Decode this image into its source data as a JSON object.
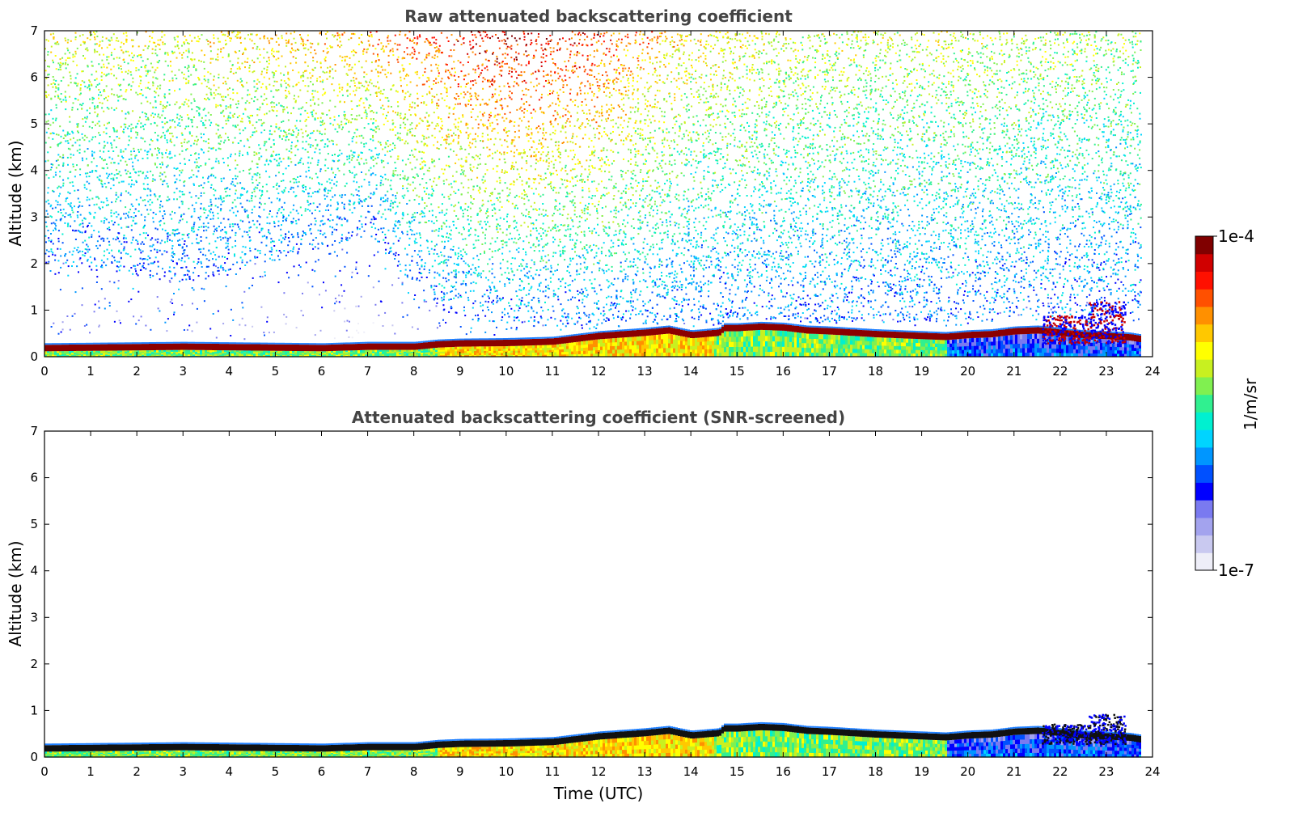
{
  "chart_data": [
    {
      "type": "heatmap",
      "title": "Raw attenuated backscattering coefficient",
      "xlabel": "",
      "ylabel": "Altitude (km)",
      "xlim": [
        0,
        24
      ],
      "ylim": [
        0,
        7
      ],
      "xticks": [
        "0",
        "1",
        "2",
        "3",
        "4",
        "5",
        "6",
        "7",
        "8",
        "9",
        "10",
        "11",
        "12",
        "13",
        "14",
        "15",
        "16",
        "17",
        "18",
        "19",
        "20",
        "21",
        "22",
        "23",
        "24"
      ],
      "yticks": [
        "0",
        "1",
        "2",
        "3",
        "4",
        "5",
        "6",
        "7"
      ],
      "variant": "raw",
      "boundary_layer_top_km": [
        [
          0,
          0.22
        ],
        [
          1,
          0.23
        ],
        [
          2,
          0.24
        ],
        [
          3,
          0.25
        ],
        [
          4,
          0.24
        ],
        [
          5,
          0.23
        ],
        [
          6,
          0.22
        ],
        [
          7,
          0.25
        ],
        [
          8,
          0.25
        ],
        [
          8.5,
          0.3
        ],
        [
          9,
          0.32
        ],
        [
          10,
          0.33
        ],
        [
          11,
          0.36
        ],
        [
          11.5,
          0.42
        ],
        [
          12,
          0.48
        ],
        [
          13,
          0.55
        ],
        [
          13.5,
          0.6
        ],
        [
          14,
          0.5
        ],
        [
          14.6,
          0.55
        ],
        [
          14.7,
          0.65
        ],
        [
          15,
          0.65
        ],
        [
          15.5,
          0.68
        ],
        [
          16,
          0.66
        ],
        [
          16.5,
          0.6
        ],
        [
          17,
          0.58
        ],
        [
          18,
          0.52
        ],
        [
          19,
          0.48
        ],
        [
          19.5,
          0.46
        ],
        [
          20,
          0.5
        ],
        [
          20.5,
          0.52
        ],
        [
          21,
          0.58
        ],
        [
          21.5,
          0.6
        ],
        [
          22,
          0.55
        ],
        [
          22.5,
          0.5
        ],
        [
          23,
          0.48
        ],
        [
          23.5,
          0.45
        ],
        [
          23.8,
          0.4
        ]
      ],
      "noise_profile": {
        "description_hours": [
          0,
          3,
          7,
          8.5,
          10,
          12,
          14,
          17,
          20,
          22,
          23.8
        ],
        "lower_noise_floor_km": [
          2.0,
          1.6,
          2.6,
          1.0,
          0.7,
          0.6,
          0.6,
          0.7,
          0.8,
          0.9,
          0.9
        ],
        "upper_intensity": [
          0.58,
          0.6,
          0.7,
          0.8,
          0.88,
          0.8,
          0.62,
          0.56,
          0.56,
          0.54,
          0.52
        ]
      },
      "cloud_features": [
        {
          "t": [
            21.6,
            22.6
          ],
          "alt_km": [
            0.3,
            0.9
          ],
          "label": "low cloud"
        },
        {
          "t": [
            22.6,
            23.4
          ],
          "alt_km": [
            0.3,
            1.2
          ],
          "label": "low cloud"
        }
      ]
    },
    {
      "type": "heatmap",
      "title": "Attenuated backscattering coefficient (SNR-screened)",
      "xlabel": "Time (UTC)",
      "ylabel": "Altitude (km)",
      "xlim": [
        0,
        24
      ],
      "ylim": [
        0,
        7
      ],
      "xticks": [
        "0",
        "1",
        "2",
        "3",
        "4",
        "5",
        "6",
        "7",
        "8",
        "9",
        "10",
        "11",
        "12",
        "13",
        "14",
        "15",
        "16",
        "17",
        "18",
        "19",
        "20",
        "21",
        "22",
        "23",
        "24"
      ],
      "yticks": [
        "0",
        "1",
        "2",
        "3",
        "4",
        "5",
        "6",
        "7"
      ],
      "variant": "screened"
    }
  ],
  "colorbar": {
    "max_label": "1e-4",
    "min_label": "1e-7",
    "unit_label": "1/m/sr",
    "colors": [
      "#eeeef8",
      "#c9c9f0",
      "#a3a3ee",
      "#7a7af0",
      "#0000ff",
      "#0050ff",
      "#0096ff",
      "#00d4ff",
      "#00f0d0",
      "#30f090",
      "#80f050",
      "#c8f020",
      "#ffff00",
      "#ffc800",
      "#ff9000",
      "#ff5000",
      "#ff1000",
      "#d00000",
      "#800000"
    ]
  }
}
